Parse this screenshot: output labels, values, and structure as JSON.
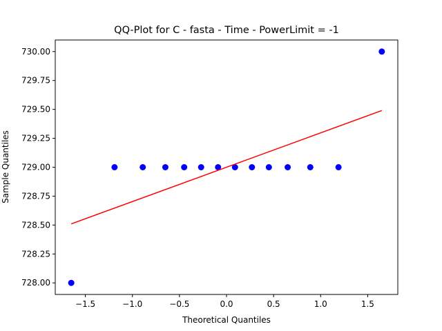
{
  "chart_data": {
    "type": "scatter",
    "title": "QQ-Plot for C - fasta - Time - PowerLimit = -1",
    "xlabel": "Theoretical Quantiles",
    "ylabel": "Sample Quantiles",
    "xlim": [
      -1.82,
      1.82
    ],
    "ylim": [
      727.9,
      730.1
    ],
    "grid": false,
    "x_ticks": [
      -1.5,
      -1.0,
      -0.5,
      0.0,
      0.5,
      1.0,
      1.5
    ],
    "x_tick_labels": [
      "−1.5",
      "−1.0",
      "−0.5",
      "0.0",
      "0.5",
      "1.0",
      "1.5"
    ],
    "y_ticks": [
      728.0,
      728.25,
      728.5,
      728.75,
      729.0,
      729.25,
      729.5,
      729.75,
      730.0
    ],
    "y_tick_labels": [
      "728.00",
      "728.25",
      "728.50",
      "728.75",
      "729.00",
      "729.25",
      "729.50",
      "729.75",
      "730.00"
    ],
    "series": [
      {
        "kind": "points",
        "color": "#0000ff",
        "points": [
          [
            -1.65,
            728.0
          ],
          [
            -1.19,
            729.0
          ],
          [
            -0.89,
            729.0
          ],
          [
            -0.65,
            729.0
          ],
          [
            -0.45,
            729.0
          ],
          [
            -0.27,
            729.0
          ],
          [
            -0.09,
            729.0
          ],
          [
            0.09,
            729.0
          ],
          [
            0.27,
            729.0
          ],
          [
            0.45,
            729.0
          ],
          [
            0.65,
            729.0
          ],
          [
            0.89,
            729.0
          ],
          [
            1.19,
            729.0
          ],
          [
            1.65,
            730.0
          ]
        ]
      },
      {
        "kind": "line",
        "color": "#ff0000",
        "points": [
          [
            -1.65,
            728.51
          ],
          [
            1.65,
            729.49
          ]
        ]
      }
    ]
  }
}
